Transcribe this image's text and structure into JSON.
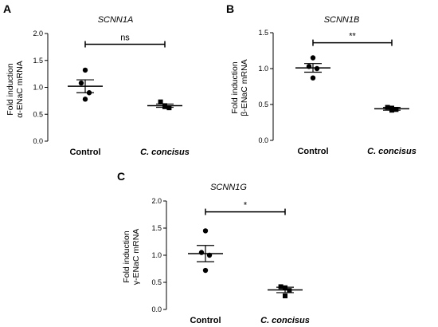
{
  "chart_data": [
    {
      "panel": "A",
      "type": "scatter",
      "title": "SCNN1A",
      "ylabel_line1": "Fold induction",
      "ylabel_line2": "α-ENaC mRNA",
      "categories": [
        "Control",
        "C. concisus"
      ],
      "ylim": [
        0,
        2.0
      ],
      "yticks": [
        "0.0",
        "0.5",
        "1.0",
        "1.5",
        "2.0"
      ],
      "ytick_values": [
        0,
        0.5,
        1.0,
        1.5,
        2.0
      ],
      "points": [
        [
          1.32,
          1.08,
          0.9,
          0.78
        ],
        [
          0.73,
          0.66,
          0.62,
          0.64
        ]
      ],
      "mean": [
        1.02,
        0.66
      ],
      "sem": [
        0.12,
        0.03
      ],
      "significance": "ns",
      "sig_y": 1.8
    },
    {
      "panel": "B",
      "type": "scatter",
      "title": "SCNN1B",
      "ylabel_line1": "Fold induction",
      "ylabel_line2": "β-ENaC mRNA",
      "categories": [
        "Control",
        "C. concisus"
      ],
      "ylim": [
        0,
        1.5
      ],
      "yticks": [
        "0.0",
        "0.5",
        "1.0",
        "1.5"
      ],
      "ytick_values": [
        0,
        0.5,
        1.0,
        1.5
      ],
      "points": [
        [
          1.15,
          1.03,
          1.0,
          0.87
        ],
        [
          0.46,
          0.45,
          0.43,
          0.42
        ]
      ],
      "mean": [
        1.01,
        0.44
      ],
      "sem": [
        0.06,
        0.02
      ],
      "significance": "**",
      "sig_y": 1.36
    },
    {
      "panel": "C",
      "type": "scatter",
      "title": "SCNN1G",
      "ylabel_line1": "Fold induction",
      "ylabel_line2": "γ-ENaC mRNA",
      "categories": [
        "Control",
        "C. concisus"
      ],
      "ylim": [
        0,
        2.0
      ],
      "yticks": [
        "0.0",
        "0.5",
        "1.0",
        "1.5",
        "2.0"
      ],
      "ytick_values": [
        0,
        0.5,
        1.0,
        1.5,
        2.0
      ],
      "points": [
        [
          1.45,
          1.05,
          1.0,
          0.72
        ],
        [
          0.42,
          0.4,
          0.35,
          0.25
        ]
      ],
      "mean": [
        1.03,
        0.36
      ],
      "sem": [
        0.15,
        0.05
      ],
      "significance": "*",
      "sig_y": 1.8
    }
  ]
}
